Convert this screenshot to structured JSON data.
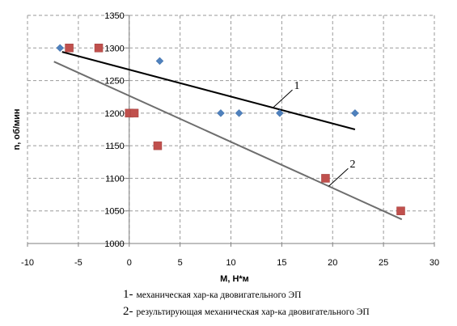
{
  "chart_data": {
    "type": "scatter",
    "xlabel": "M, H*м",
    "ylabel": "n, об/мин",
    "xlim": [
      -10,
      30
    ],
    "ylim": [
      1000,
      1350
    ],
    "x_ticks": [
      -10,
      -5,
      0,
      5,
      10,
      15,
      20,
      25,
      30
    ],
    "y_ticks": [
      1000,
      1050,
      1100,
      1150,
      1200,
      1250,
      1300,
      1350
    ],
    "grid": true,
    "series": [
      {
        "marker": "diamond",
        "color": "#4f81bd",
        "points": [
          [
            -6.8,
            1300
          ],
          [
            3,
            1280
          ],
          [
            9,
            1200
          ],
          [
            10.8,
            1200
          ],
          [
            14.8,
            1200
          ],
          [
            22.2,
            1200
          ]
        ]
      },
      {
        "marker": "square",
        "color": "#c0504d",
        "points": [
          [
            -5.9,
            1300
          ],
          [
            -3,
            1300
          ],
          [
            0,
            1200
          ],
          [
            0.5,
            1200
          ],
          [
            2.8,
            1150
          ],
          [
            19.3,
            1100
          ],
          [
            26.7,
            1050
          ]
        ]
      }
    ],
    "lines": [
      {
        "label": "1",
        "color": "#000000",
        "from": [
          -6.6,
          1294
        ],
        "to": [
          22.2,
          1175
        ]
      },
      {
        "label": "2",
        "color": "#6e6e6e",
        "from": [
          -7.4,
          1279
        ],
        "to": [
          26.8,
          1037
        ]
      }
    ]
  },
  "legend": {
    "item1_num": "1-",
    "item1_text": "механическая хар-ка двовигательного ЭП",
    "item2_num": "2-",
    "item2_text": "результирующая механическая хар-ка двовигательного ЭП"
  }
}
